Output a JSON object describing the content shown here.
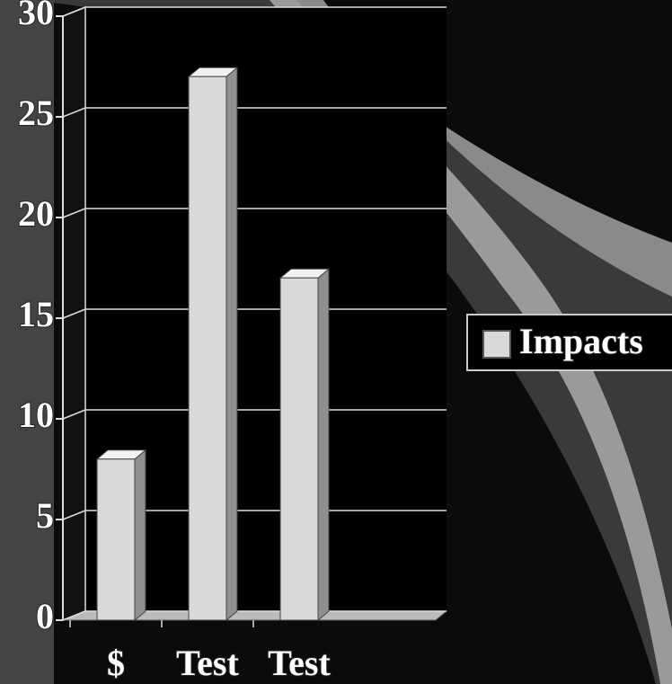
{
  "chart_data": {
    "type": "bar",
    "categories": [
      "$",
      "Test",
      "Test"
    ],
    "series": [
      {
        "name": "Impacts",
        "color": "#d9d9d9",
        "values": [
          8,
          27,
          17
        ]
      }
    ],
    "ylim": [
      0,
      30
    ],
    "yticks": [
      0,
      5,
      10,
      15,
      20,
      25,
      30
    ],
    "grid": true,
    "legend": "right"
  }
}
